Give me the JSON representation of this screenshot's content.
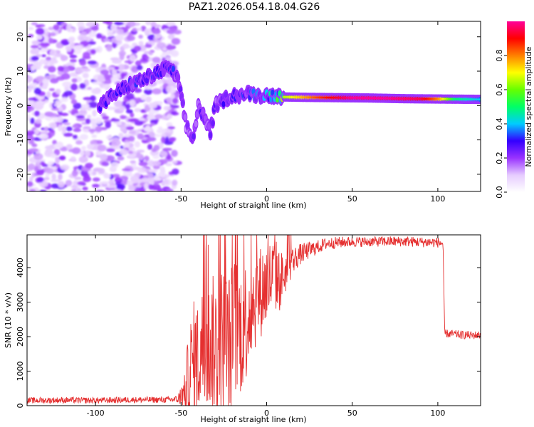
{
  "figure_title": "PAZ1.2026.054.18.04.G26",
  "chart_data": [
    {
      "type": "heatmap",
      "xlabel": "Height of straight line (km)",
      "ylabel": "Frequency (Hz)",
      "xlim": [
        -140,
        125
      ],
      "ylim": [
        -25,
        24.5
      ],
      "xticks": [
        -100,
        -50,
        0,
        50,
        100
      ],
      "xtick_labels": [
        "-100",
        "-50",
        "0",
        "50",
        "100"
      ],
      "yticks": [
        -20,
        -10,
        0,
        10,
        20
      ],
      "ytick_labels": [
        "-20",
        "-10",
        "0",
        "10",
        "20"
      ],
      "colorbar": {
        "label": "Normalized spectral amplitude",
        "range": [
          0,
          1
        ],
        "ticks": [
          0.0,
          0.2,
          0.4,
          0.6,
          0.8
        ],
        "tick_labels": [
          "0.0",
          "0.2",
          "0.4",
          "0.6",
          "0.8"
        ],
        "colormap": [
          "#ffffff",
          "#e6ccff",
          "#9933ff",
          "#3300ff",
          "#00ccff",
          "#00ff66",
          "#66ff00",
          "#ffff00",
          "#ff8000",
          "#ff0000",
          "#ff0099"
        ]
      },
      "noise_region_x": [
        -140,
        -52
      ],
      "frequency_trace": {
        "x": [
          -97,
          -90,
          -80,
          -70,
          -62,
          -57,
          -52,
          -47,
          -43,
          -40,
          -36,
          -33,
          -30,
          -27,
          -24,
          -20,
          -15,
          -10,
          -5,
          0,
          5,
          10,
          20,
          40,
          60,
          80,
          100,
          125
        ],
        "y": [
          0,
          3,
          6,
          8,
          10,
          11,
          8,
          -6,
          -10,
          0,
          -4,
          -8,
          0,
          1,
          2,
          3,
          3,
          3.5,
          3,
          3,
          2.8,
          2.5,
          2.4,
          2.3,
          2.2,
          2.0,
          1.9,
          1.8
        ]
      },
      "intensity_trace": {
        "x": [
          -100,
          -55,
          -50,
          -30,
          -10,
          0,
          10,
          30,
          50,
          70,
          90,
          100,
          110,
          125
        ],
        "amp": [
          0.25,
          0.3,
          0.2,
          0.25,
          0.3,
          0.35,
          0.6,
          0.8,
          0.95,
          0.95,
          0.9,
          0.75,
          0.45,
          0.35
        ]
      }
    },
    {
      "type": "line",
      "xlabel": "Height of straight line (km)",
      "ylabel": "SNR (10 * v/v)",
      "xlim": [
        -140,
        125
      ],
      "ylim": [
        0,
        4950
      ],
      "xticks": [
        -100,
        -50,
        0,
        50,
        100
      ],
      "xtick_labels": [
        "-100",
        "-50",
        "0",
        "50",
        "100"
      ],
      "yticks": [
        0,
        1000,
        2000,
        3000,
        4000
      ],
      "ytick_labels": [
        "0",
        "1000",
        "2000",
        "3000",
        "4000"
      ],
      "line_color": "#e53030",
      "series": [
        {
          "name": "SNR",
          "x": [
            -140,
            -120,
            -100,
            -80,
            -60,
            -52,
            -48,
            -45,
            -42,
            -40,
            -38,
            -35,
            -32,
            -30,
            -27,
            -25,
            -22,
            -20,
            -18,
            -15,
            -12,
            -10,
            -7,
            -5,
            -2,
            0,
            3,
            5,
            8,
            10,
            13,
            15,
            20,
            25,
            30,
            35,
            40,
            45,
            50,
            60,
            70,
            80,
            90,
            100,
            103,
            104,
            106,
            110,
            115,
            120,
            125
          ],
          "y": [
            150,
            160,
            150,
            170,
            170,
            180,
            400,
            900,
            1500,
            1300,
            1700,
            1600,
            1800,
            1700,
            1800,
            1900,
            1600,
            2000,
            2300,
            2200,
            2500,
            2800,
            3100,
            3200,
            3400,
            3500,
            3700,
            3800,
            3600,
            3800,
            4000,
            4200,
            4400,
            4500,
            4600,
            4700,
            4720,
            4740,
            4750,
            4750,
            4760,
            4760,
            4740,
            4730,
            4700,
            2100,
            2080,
            2070,
            2050,
            2040,
            2050
          ],
          "noise": [
            90,
            90,
            90,
            90,
            90,
            110,
            500,
            1600,
            1700,
            1700,
            1800,
            1800,
            2000,
            2100,
            2200,
            2300,
            2300,
            2300,
            2100,
            1900,
            1800,
            1700,
            1500,
            1400,
            1300,
            1300,
            1200,
            1100,
            900,
            700,
            500,
            400,
            300,
            250,
            200,
            180,
            170,
            160,
            150,
            150,
            150,
            150,
            150,
            150,
            150,
            120,
            120,
            120,
            120,
            120,
            120
          ]
        }
      ]
    }
  ]
}
